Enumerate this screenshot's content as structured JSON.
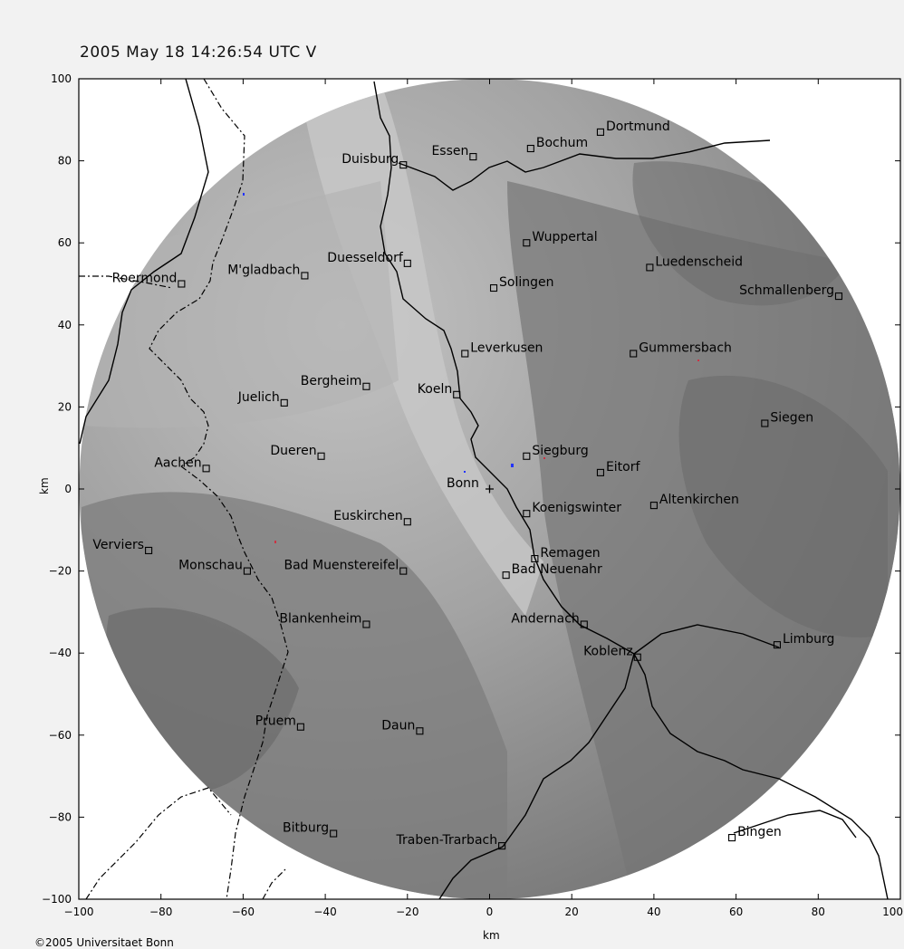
{
  "title": "2005 May 18 14:26:54 UTC  V",
  "copyright": "©2005 Universitaet Bonn",
  "axes": {
    "xlabel": "km",
    "ylabel": "km",
    "xlim": [
      -100,
      100
    ],
    "ylim": [
      -100,
      100
    ],
    "x_ticks": [
      -100,
      -80,
      -60,
      -40,
      -20,
      0,
      20,
      40,
      60,
      80,
      100
    ],
    "y_ticks": [
      100,
      80,
      60,
      40,
      20,
      0,
      -20,
      -40,
      -60,
      -80,
      -100
    ]
  },
  "radar": {
    "center_label": "Bonn",
    "range_km": 100
  },
  "colors": {
    "page_background": "#f2f2f2",
    "outside_range": "#ffffff",
    "terrain_low": "#bdbdbd",
    "terrain_mid": "#8e8e8e",
    "terrain_high": "#6e6e6e",
    "river": "#000000",
    "border": "#000000"
  },
  "cities": [
    {
      "name": "Dortmund",
      "x": 27,
      "y": 87
    },
    {
      "name": "Bochum",
      "x": 10,
      "y": 83
    },
    {
      "name": "Essen",
      "x": -4,
      "y": 81
    },
    {
      "name": "Duisburg",
      "x": -21,
      "y": 79
    },
    {
      "name": "Wuppertal",
      "x": 9,
      "y": 60
    },
    {
      "name": "Luedenscheid",
      "x": 39,
      "y": 54
    },
    {
      "name": "Duesseldorf",
      "x": -20,
      "y": 55
    },
    {
      "name": "M'gladbach",
      "x": -45,
      "y": 52
    },
    {
      "name": "Roermond",
      "x": -75,
      "y": 50
    },
    {
      "name": "Solingen",
      "x": 1,
      "y": 49
    },
    {
      "name": "Schmallenberg",
      "x": 85,
      "y": 47
    },
    {
      "name": "Leverkusen",
      "x": -6,
      "y": 33
    },
    {
      "name": "Gummersbach",
      "x": 35,
      "y": 33
    },
    {
      "name": "Bergheim",
      "x": -30,
      "y": 25
    },
    {
      "name": "Koeln",
      "x": -8,
      "y": 23
    },
    {
      "name": "Juelich",
      "x": -50,
      "y": 21
    },
    {
      "name": "Siegen",
      "x": 67,
      "y": 16
    },
    {
      "name": "Dueren",
      "x": -41,
      "y": 8
    },
    {
      "name": "Siegburg",
      "x": 9,
      "y": 8
    },
    {
      "name": "Eitorf",
      "x": 27,
      "y": 4
    },
    {
      "name": "Aachen",
      "x": -69,
      "y": 5
    },
    {
      "name": "Euskirchen",
      "x": -20,
      "y": -8
    },
    {
      "name": "Koenigswinter",
      "x": 9,
      "y": -6
    },
    {
      "name": "Altenkirchen",
      "x": 40,
      "y": -4
    },
    {
      "name": "Verviers",
      "x": -83,
      "y": -15
    },
    {
      "name": "Monschau",
      "x": -59,
      "y": -20
    },
    {
      "name": "Bad Muenstereifel",
      "x": -21,
      "y": -20
    },
    {
      "name": "Remagen",
      "x": 11,
      "y": -17
    },
    {
      "name": "Bad Neuenahr",
      "x": 4,
      "y": -21
    },
    {
      "name": "Blankenheim",
      "x": -30,
      "y": -33
    },
    {
      "name": "Andernach",
      "x": 23,
      "y": -33
    },
    {
      "name": "Koblenz",
      "x": 36,
      "y": -41
    },
    {
      "name": "Limburg",
      "x": 70,
      "y": -38
    },
    {
      "name": "Pruem",
      "x": -46,
      "y": -58
    },
    {
      "name": "Daun",
      "x": -17,
      "y": -59
    },
    {
      "name": "Bitburg",
      "x": -38,
      "y": -84
    },
    {
      "name": "Traben-Trarbach",
      "x": 3,
      "y": -87
    },
    {
      "name": "Bingen",
      "x": 59,
      "y": -85
    }
  ]
}
